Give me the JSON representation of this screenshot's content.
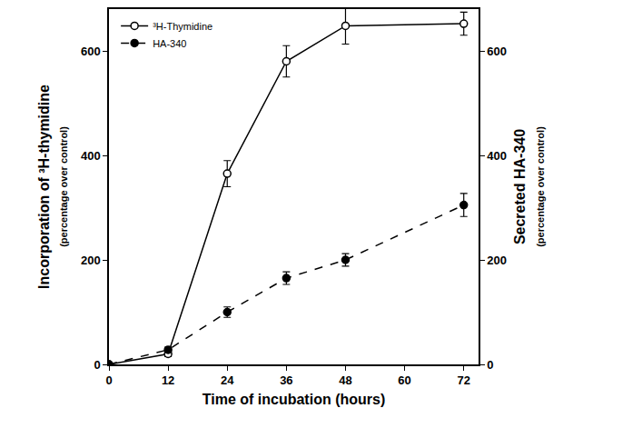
{
  "chart_data": {
    "type": "line",
    "x_label": "Time of incubation (hours)",
    "y_label": [
      "Incorporation of ³H-thymidine",
      "(percentage over control)"
    ],
    "y2_label": [
      "Secreted HA-340",
      "(percentage over control)"
    ],
    "x": [
      0,
      12,
      24,
      36,
      48,
      72
    ],
    "series": [
      {
        "name": "³H-Thymidine",
        "color": "#000000",
        "marker": "open_circle",
        "line_style": "solid",
        "values": [
          0,
          20,
          365,
          580,
          648,
          652
        ],
        "error": [
          0,
          5,
          25,
          30,
          35,
          22
        ]
      },
      {
        "name": "HA-340",
        "color": "#000000",
        "marker": "filled_circle",
        "line_style": "dashed",
        "axis": "y2",
        "values": [
          0,
          28,
          100,
          165,
          200,
          305
        ],
        "error": [
          0,
          5,
          10,
          12,
          12,
          22
        ]
      }
    ],
    "xlim": [
      0,
      75
    ],
    "xticks": [
      0,
      12,
      24,
      36,
      48,
      60,
      72
    ],
    "ylim": [
      0,
      680
    ],
    "yticks": [
      0,
      200,
      400,
      600
    ],
    "y2lim": [
      0,
      680
    ],
    "y2ticks": [
      0,
      200,
      400,
      600
    ],
    "grid": false,
    "legend": "upper left"
  }
}
